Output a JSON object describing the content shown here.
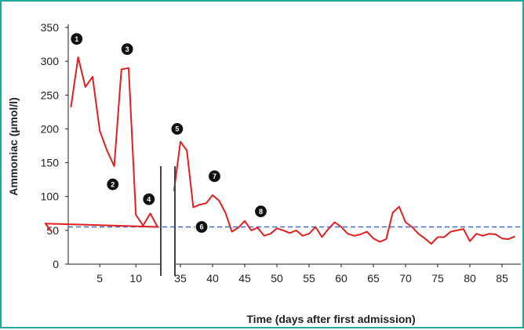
{
  "chart_data": {
    "type": "line",
    "xlabel": "Time (days after first admission)",
    "ylabel": "Ammoniac (µmol/l)",
    "ylim": [
      0,
      350
    ],
    "yticks": [
      0,
      50,
      100,
      150,
      200,
      250,
      300,
      350
    ],
    "grid": false,
    "axis_break": {
      "from": 13,
      "to": 34
    },
    "xticks_left": [
      5,
      10
    ],
    "xticks_right": [
      35,
      40,
      45,
      50,
      55,
      60,
      65,
      70,
      75,
      80,
      85
    ],
    "line_color": "#e02020",
    "reference_line": {
      "y": 55,
      "style": "dashed",
      "color": "#3f6fd6"
    },
    "series": [
      {
        "segment": "before",
        "points": [
          [
            1,
            232
          ],
          [
            2,
            306
          ],
          [
            3,
            262
          ],
          [
            4,
            277
          ],
          [
            5,
            197
          ],
          [
            6,
            168
          ],
          [
            7,
            145
          ],
          [
            8,
            288
          ],
          [
            9,
            290
          ],
          [
            10,
            73
          ],
          [
            11,
            57
          ],
          [
            12,
            75
          ],
          [
            13,
            55
          ],
          [
            14,
            60
          ],
          [
            15,
            48
          ]
        ]
      },
      {
        "segment": "after",
        "points": [
          [
            34,
            108
          ],
          [
            35,
            181
          ],
          [
            36,
            168
          ],
          [
            37,
            84
          ],
          [
            38,
            88
          ],
          [
            39,
            90
          ],
          [
            40,
            102
          ],
          [
            41,
            94
          ],
          [
            42,
            76
          ],
          [
            43,
            48
          ],
          [
            44,
            54
          ],
          [
            45,
            64
          ],
          [
            46,
            50
          ],
          [
            47,
            54
          ],
          [
            48,
            42
          ],
          [
            49,
            45
          ],
          [
            50,
            53
          ],
          [
            51,
            50
          ],
          [
            52,
            46
          ],
          [
            53,
            50
          ],
          [
            54,
            42
          ],
          [
            55,
            45
          ],
          [
            56,
            55
          ],
          [
            57,
            40
          ],
          [
            58,
            52
          ],
          [
            59,
            62
          ],
          [
            60,
            55
          ],
          [
            61,
            45
          ],
          [
            62,
            42
          ],
          [
            63,
            44
          ],
          [
            64,
            48
          ],
          [
            65,
            38
          ],
          [
            66,
            33
          ],
          [
            67,
            37
          ],
          [
            68,
            76
          ],
          [
            69,
            85
          ],
          [
            70,
            62
          ],
          [
            71,
            55
          ],
          [
            72,
            45
          ],
          [
            73,
            38
          ],
          [
            74,
            30
          ],
          [
            75,
            40
          ],
          [
            76,
            40
          ],
          [
            77,
            48
          ],
          [
            78,
            50
          ],
          [
            79,
            52
          ],
          [
            80,
            34
          ],
          [
            81,
            45
          ],
          [
            82,
            42
          ],
          [
            83,
            45
          ],
          [
            84,
            44
          ],
          [
            85,
            38
          ],
          [
            86,
            37
          ],
          [
            87,
            41
          ]
        ]
      }
    ],
    "annotations": [
      {
        "label": "1",
        "x": 1.8,
        "y": 333
      },
      {
        "label": "2",
        "x": 6.8,
        "y": 118
      },
      {
        "label": "3",
        "x": 8.8,
        "y": 318
      },
      {
        "label": "4",
        "x": 11.8,
        "y": 96
      },
      {
        "label": "5",
        "x": 34.5,
        "y": 200
      },
      {
        "label": "6",
        "x": 38.3,
        "y": 55
      },
      {
        "label": "7",
        "x": 40.3,
        "y": 130
      },
      {
        "label": "8",
        "x": 47.5,
        "y": 78
      }
    ]
  }
}
